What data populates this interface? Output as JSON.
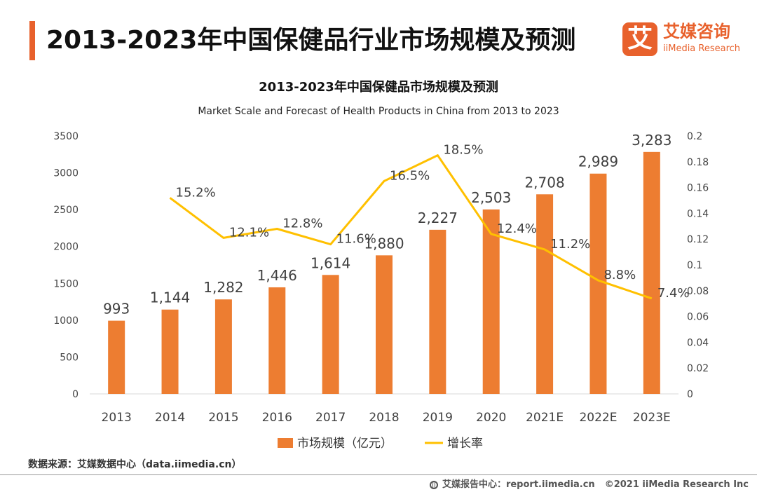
{
  "header": {
    "title": "2013-2023年中国保健品行业市场规模及预测",
    "logo_mark": "艾",
    "logo_cn": "艾媒咨询",
    "logo_en": "iiMedia Research"
  },
  "chart_data": {
    "type": "bar",
    "title": "2013-2023年中国保健品市场规模及预测",
    "subtitle": "Market Scale and Forecast of Health Products in China from 2013 to 2023",
    "categories": [
      "2013",
      "2014",
      "2015",
      "2016",
      "2017",
      "2018",
      "2019",
      "2020",
      "2021E",
      "2022E",
      "2023E"
    ],
    "series": [
      {
        "name": "市场规模（亿元）",
        "type": "bar",
        "axis": "left",
        "color": "#ed7d31",
        "values": [
          993,
          1144,
          1282,
          1446,
          1614,
          1880,
          2227,
          2503,
          2708,
          2989,
          3283
        ],
        "labels": [
          "993",
          "1,144",
          "1,282",
          "1,446",
          "1,614",
          "1,880",
          "2,227",
          "2,503",
          "2,708",
          "2,989",
          "3,283"
        ]
      },
      {
        "name": "增长率",
        "type": "line",
        "axis": "right",
        "color": "#ffc000",
        "values": [
          null,
          0.152,
          0.121,
          0.128,
          0.116,
          0.165,
          0.185,
          0.124,
          0.112,
          0.088,
          0.074
        ],
        "labels": [
          "",
          "15.2%",
          "12.1%",
          "12.8%",
          "11.6%",
          "16.5%",
          "18.5%",
          "12.4%",
          "11.2%",
          "8.8%",
          "7.4%"
        ]
      }
    ],
    "y_left": {
      "min": 0,
      "max": 3500,
      "ticks": [
        "0",
        "500",
        "1000",
        "1500",
        "2000",
        "2500",
        "3000",
        "3500"
      ]
    },
    "y_right": {
      "min": 0,
      "max": 0.2,
      "ticks": [
        "0",
        "0.02",
        "0.04",
        "0.06",
        "0.08",
        "0.1",
        "0.12",
        "0.14",
        "0.16",
        "0.18",
        "0.2"
      ]
    },
    "grid": false,
    "legend": "bottom"
  },
  "footer": {
    "source": "数据来源：艾媒数据中心（data.iimedia.cn）",
    "site": "艾媒报告中心：report.iimedia.cn",
    "copyright": "©2021  iiMedia Research  Inc"
  }
}
